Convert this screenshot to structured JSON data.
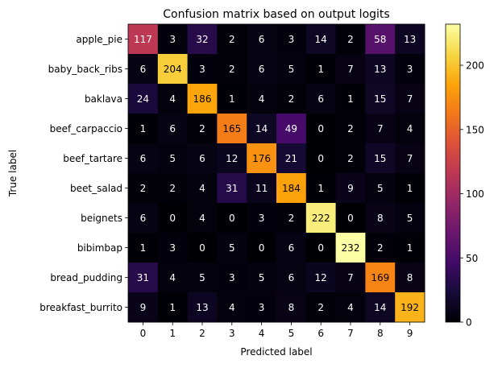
{
  "chart_data": {
    "type": "heatmap",
    "title": "Confusion matrix based on output logits",
    "xlabel": "Predicted label",
    "ylabel": "True label",
    "x_ticks": [
      "0",
      "1",
      "2",
      "3",
      "4",
      "5",
      "6",
      "7",
      "8",
      "9"
    ],
    "y_ticks": [
      "apple_pie",
      "baby_back_ribs",
      "baklava",
      "beef_carpaccio",
      "beef_tartare",
      "beet_salad",
      "beignets",
      "bibimbap",
      "bread_pudding",
      "breakfast_burrito"
    ],
    "values": [
      [
        117,
        3,
        32,
        2,
        6,
        3,
        14,
        2,
        58,
        13
      ],
      [
        6,
        204,
        3,
        2,
        6,
        5,
        1,
        7,
        13,
        3
      ],
      [
        24,
        4,
        186,
        1,
        4,
        2,
        6,
        1,
        15,
        7
      ],
      [
        1,
        6,
        2,
        165,
        14,
        49,
        0,
        2,
        7,
        4
      ],
      [
        6,
        5,
        6,
        12,
        176,
        21,
        0,
        2,
        15,
        7
      ],
      [
        2,
        2,
        4,
        31,
        11,
        184,
        1,
        9,
        5,
        1
      ],
      [
        6,
        0,
        4,
        0,
        3,
        2,
        222,
        0,
        8,
        5
      ],
      [
        1,
        3,
        0,
        5,
        0,
        6,
        0,
        232,
        2,
        1
      ],
      [
        31,
        4,
        5,
        3,
        5,
        6,
        12,
        7,
        169,
        8
      ],
      [
        9,
        1,
        13,
        4,
        3,
        8,
        2,
        4,
        14,
        192
      ]
    ],
    "colormap": "inferno",
    "vmin": 0,
    "vmax": 232,
    "colorbar_ticks": [
      "0",
      "50",
      "100",
      "150",
      "200"
    ],
    "colorbar_tick_values": [
      0,
      50,
      100,
      150,
      200
    ],
    "grid": false
  }
}
